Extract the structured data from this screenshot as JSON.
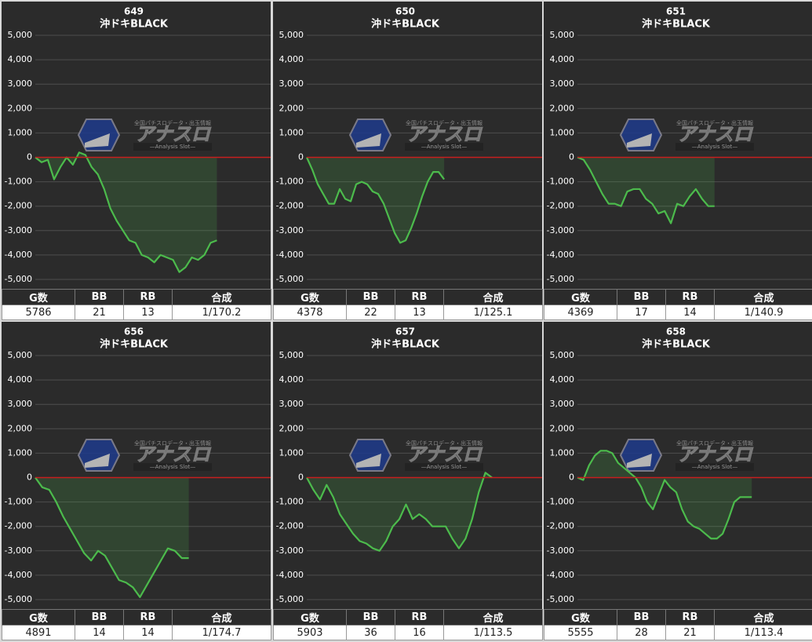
{
  "chart_data": [
    {
      "type": "line",
      "title": "649",
      "subtitle": "沖ドキBLACK",
      "color": "#4cbb4c",
      "baseline_color": "#c81e1e",
      "grid": true,
      "ylim": [
        -5000,
        5000
      ],
      "yticks": [
        {
          "value": -5000,
          "label": "-5,000"
        },
        {
          "value": -4000,
          "label": "-4,000"
        },
        {
          "value": -3000,
          "label": "-3,000"
        },
        {
          "value": -2000,
          "label": "-2,000"
        },
        {
          "value": -1000,
          "label": "-1,000"
        },
        0,
        {
          "value": 1000,
          "label": "1,000"
        },
        {
          "value": 2000,
          "label": "2,000"
        },
        {
          "value": 3000,
          "label": "3,000"
        },
        {
          "value": 4000,
          "label": "4,000"
        },
        {
          "value": 5000,
          "label": "5,000"
        }
      ],
      "values": [
        0,
        -200,
        -100,
        -900,
        -400,
        0,
        -300,
        200,
        100,
        -400,
        -700,
        -1300,
        -2100,
        -2600,
        -3000,
        -3400,
        -3500,
        -4000,
        -4100,
        -4300,
        -4000,
        -4100,
        -4200,
        -4700,
        -4500,
        -4100,
        -4200,
        -4000,
        -3500,
        -3400
      ]
    },
    {
      "type": "line",
      "title": "650",
      "subtitle": "沖ドキBLACK",
      "color": "#4cbb4c",
      "baseline_color": "#c81e1e",
      "grid": true,
      "ylim": [
        -5000,
        5000
      ],
      "yticks": [
        {
          "value": -5000,
          "label": "-5,000"
        },
        {
          "value": -4000,
          "label": "-4,000"
        },
        {
          "value": -3000,
          "label": "-3,000"
        },
        {
          "value": -2000,
          "label": "-2,000"
        },
        {
          "value": -1000,
          "label": "-1,000"
        },
        0,
        {
          "value": 1000,
          "label": "1,000"
        },
        {
          "value": 2000,
          "label": "2,000"
        },
        {
          "value": 3000,
          "label": "3,000"
        },
        {
          "value": 4000,
          "label": "4,000"
        },
        {
          "value": 5000,
          "label": "5,000"
        }
      ],
      "values": [
        0,
        -500,
        -1100,
        -1500,
        -1900,
        -1900,
        -1300,
        -1700,
        -1800,
        -1100,
        -1000,
        -1100,
        -1400,
        -1500,
        -1900,
        -2500,
        -3100,
        -3500,
        -3400,
        -2900,
        -2300,
        -1600,
        -1000,
        -600,
        -600,
        -900
      ]
    },
    {
      "type": "line",
      "title": "651",
      "subtitle": "沖ドキBLACK",
      "color": "#4cbb4c",
      "baseline_color": "#c81e1e",
      "grid": true,
      "ylim": [
        -5000,
        5000
      ],
      "yticks": [
        {
          "value": -5000,
          "label": "-5,000"
        },
        {
          "value": -4000,
          "label": "-4,000"
        },
        {
          "value": -3000,
          "label": "-3,000"
        },
        {
          "value": -2000,
          "label": "-2,000"
        },
        {
          "value": -1000,
          "label": "-1,000"
        },
        0,
        {
          "value": 1000,
          "label": "1,000"
        },
        {
          "value": 2000,
          "label": "2,000"
        },
        {
          "value": 3000,
          "label": "3,000"
        },
        {
          "value": 4000,
          "label": "4,000"
        },
        {
          "value": 5000,
          "label": "5,000"
        }
      ],
      "values": [
        0,
        -100,
        -500,
        -1000,
        -1500,
        -1900,
        -1900,
        -2000,
        -1400,
        -1300,
        -1300,
        -1700,
        -1900,
        -2300,
        -2200,
        -2700,
        -1900,
        -2000,
        -1600,
        -1300,
        -1700,
        -2000,
        -2000
      ]
    },
    {
      "type": "line",
      "title": "656",
      "subtitle": "沖ドキBLACK",
      "color": "#4cbb4c",
      "baseline_color": "#c81e1e",
      "grid": true,
      "ylim": [
        -5000,
        5000
      ],
      "yticks": [
        {
          "value": -5000,
          "label": "-5,000"
        },
        {
          "value": -4000,
          "label": "-4,000"
        },
        {
          "value": -3000,
          "label": "-3,000"
        },
        {
          "value": -2000,
          "label": "-2,000"
        },
        {
          "value": -1000,
          "label": "-1,000"
        },
        0,
        {
          "value": 1000,
          "label": "1,000"
        },
        {
          "value": 2000,
          "label": "2,000"
        },
        {
          "value": 3000,
          "label": "3,000"
        },
        {
          "value": 4000,
          "label": "4,000"
        },
        {
          "value": 5000,
          "label": "5,000"
        }
      ],
      "values": [
        0,
        -400,
        -500,
        -1000,
        -1600,
        -2100,
        -2600,
        -3100,
        -3400,
        -3000,
        -3200,
        -3700,
        -4200,
        -4300,
        -4500,
        -4900,
        -4400,
        -3900,
        -3400,
        -2900,
        -3000,
        -3300,
        -3300
      ]
    },
    {
      "type": "line",
      "title": "657",
      "subtitle": "沖ドキBLACK",
      "color": "#4cbb4c",
      "baseline_color": "#c81e1e",
      "grid": true,
      "ylim": [
        -5000,
        5000
      ],
      "yticks": [
        {
          "value": -5000,
          "label": "-5,000"
        },
        {
          "value": -4000,
          "label": "-4,000"
        },
        {
          "value": -3000,
          "label": "-3,000"
        },
        {
          "value": -2000,
          "label": "-2,000"
        },
        {
          "value": -1000,
          "label": "-1,000"
        },
        0,
        {
          "value": 1000,
          "label": "1,000"
        },
        {
          "value": 2000,
          "label": "2,000"
        },
        {
          "value": 3000,
          "label": "3,000"
        },
        {
          "value": 4000,
          "label": "4,000"
        },
        {
          "value": 5000,
          "label": "5,000"
        }
      ],
      "values": [
        0,
        -500,
        -900,
        -300,
        -800,
        -1500,
        -1900,
        -2300,
        -2600,
        -2700,
        -2900,
        -3000,
        -2600,
        -2000,
        -1700,
        -1100,
        -1700,
        -1500,
        -1700,
        -2000,
        -2000,
        -2000,
        -2500,
        -2900,
        -2500,
        -1700,
        -600,
        200,
        0
      ]
    },
    {
      "type": "line",
      "title": "658",
      "subtitle": "沖ドキBLACK",
      "color": "#4cbb4c",
      "baseline_color": "#c81e1e",
      "grid": true,
      "ylim": [
        -5000,
        5000
      ],
      "yticks": [
        {
          "value": -5000,
          "label": "-5,000"
        },
        {
          "value": -4000,
          "label": "-4,000"
        },
        {
          "value": -3000,
          "label": "-3,000"
        },
        {
          "value": -2000,
          "label": "-2,000"
        },
        {
          "value": -1000,
          "label": "-1,000"
        },
        0,
        {
          "value": 1000,
          "label": "1,000"
        },
        {
          "value": 2000,
          "label": "2,000"
        },
        {
          "value": 3000,
          "label": "3,000"
        },
        {
          "value": 4000,
          "label": "4,000"
        },
        {
          "value": 5000,
          "label": "5,000"
        }
      ],
      "values": [
        0,
        -100,
        500,
        900,
        1100,
        1100,
        1000,
        600,
        400,
        200,
        0,
        -400,
        -1000,
        -1300,
        -700,
        -100,
        -400,
        -600,
        -1300,
        -1800,
        -2000,
        -2100,
        -2300,
        -2500,
        -2500,
        -2300,
        -1700,
        -1000,
        -800,
        -800,
        -800
      ]
    }
  ],
  "tables": [
    {
      "headers": [
        "G数",
        "BB",
        "RB",
        "合成"
      ],
      "row": [
        5786,
        21,
        13,
        "1/170.2"
      ]
    },
    {
      "headers": [
        "G数",
        "BB",
        "RB",
        "合成"
      ],
      "row": [
        4378,
        22,
        13,
        "1/125.1"
      ]
    },
    {
      "headers": [
        "G数",
        "BB",
        "RB",
        "合成"
      ],
      "row": [
        4369,
        17,
        14,
        "1/140.9"
      ]
    },
    {
      "headers": [
        "G数",
        "BB",
        "RB",
        "合成"
      ],
      "row": [
        4891,
        14,
        14,
        "1/174.7"
      ]
    },
    {
      "headers": [
        "G数",
        "BB",
        "RB",
        "合成"
      ],
      "row": [
        5903,
        36,
        16,
        "1/113.5"
      ]
    },
    {
      "headers": [
        "G数",
        "BB",
        "RB",
        "合成"
      ],
      "row": [
        5555,
        28,
        21,
        "1/113.4"
      ]
    }
  ],
  "watermark": {
    "tagline": "全国パチスロデータ・出玉情報",
    "logo": "アナスロ",
    "sub": "—Analysis Slot—"
  }
}
